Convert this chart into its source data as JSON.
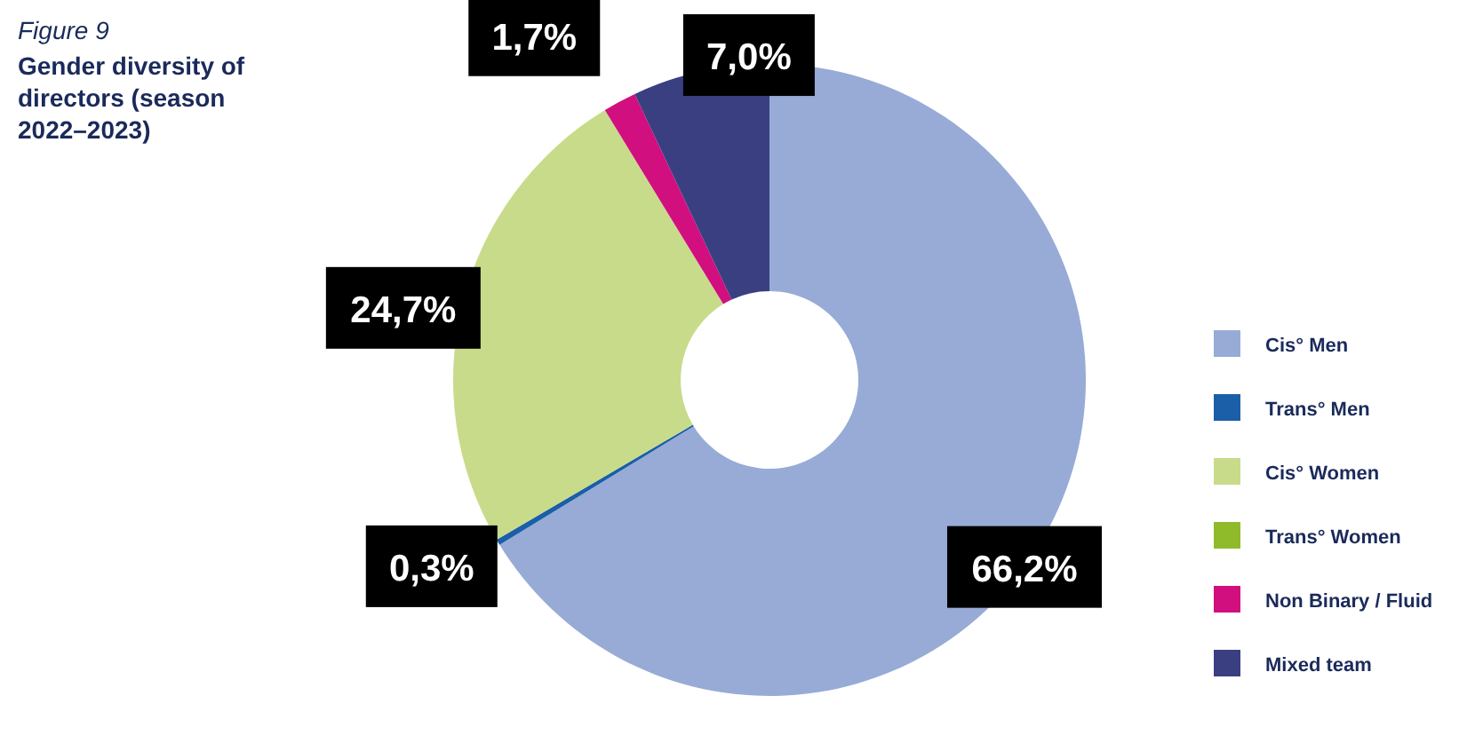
{
  "chart_data": {
    "type": "donut",
    "title": "Figure 9",
    "subtitle": "Gender diversity of directors (season 2022–2023)",
    "categories": [
      "Cis° Men",
      "Trans° Men",
      "Cis° Women",
      "Trans° Women",
      "Non Binary / Fluid",
      "Mixed team"
    ],
    "values": [
      66.2,
      0.3,
      24.7,
      0,
      1.7,
      7.0
    ],
    "value_labels": [
      "66,2%",
      "0,3%",
      "24,7%",
      null,
      "1,7%",
      "7,0%"
    ],
    "colors": [
      "#97abd6",
      "#1a5fa8",
      "#c8db8a",
      "#8fbb2a",
      "#d10f7f",
      "#3a3f82"
    ],
    "legend": "right"
  }
}
